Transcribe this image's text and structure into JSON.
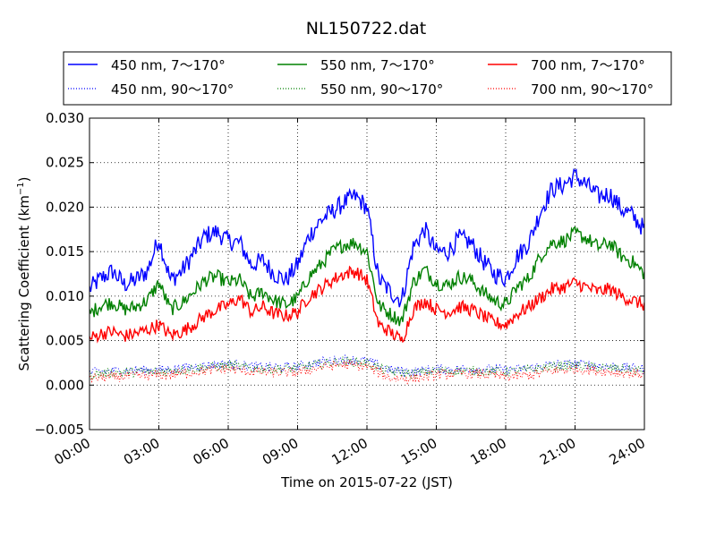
{
  "chart_data": {
    "type": "line",
    "title": "NL150722.dat",
    "xlabel": "Time on 2015-07-22 (JST)",
    "ylabel_main": "Scattering Coefficient (km",
    "ylabel_sup": "−1",
    "ylabel_close": ")",
    "xlim_hours": [
      0,
      24
    ],
    "ylim": [
      -0.005,
      0.03
    ],
    "x_ticks": [
      {
        "hour": 0,
        "label": "00:00"
      },
      {
        "hour": 3,
        "label": "03:00"
      },
      {
        "hour": 6,
        "label": "06:00"
      },
      {
        "hour": 9,
        "label": "09:00"
      },
      {
        "hour": 12,
        "label": "12:00"
      },
      {
        "hour": 15,
        "label": "15:00"
      },
      {
        "hour": 18,
        "label": "18:00"
      },
      {
        "hour": 21,
        "label": "21:00"
      },
      {
        "hour": 24,
        "label": "24:00"
      }
    ],
    "y_ticks": [
      {
        "value": -0.005,
        "label": "−0.005"
      },
      {
        "value": 0.0,
        "label": "0.000"
      },
      {
        "value": 0.005,
        "label": "0.005"
      },
      {
        "value": 0.01,
        "label": "0.010"
      },
      {
        "value": 0.015,
        "label": "0.015"
      },
      {
        "value": 0.02,
        "label": "0.020"
      },
      {
        "value": 0.025,
        "label": "0.025"
      },
      {
        "value": 0.03,
        "label": "0.030"
      }
    ],
    "grid": true,
    "legend_position": "top, above plot",
    "series": [
      {
        "name": "450 nm, 7～170°",
        "color": "#0000ff",
        "style": "solid",
        "x": [
          0,
          0.5,
          1,
          1.5,
          2,
          2.5,
          3,
          3.5,
          4,
          4.5,
          5,
          5.5,
          6,
          6.5,
          7,
          7.5,
          8,
          8.5,
          9,
          9.5,
          10,
          10.5,
          11,
          11.5,
          12,
          12.5,
          13,
          13.5,
          14,
          14.5,
          15,
          15.5,
          16,
          16.5,
          17,
          17.5,
          18,
          18.5,
          19,
          19.5,
          20,
          20.5,
          21,
          21.5,
          22,
          22.5,
          23,
          23.5,
          24
        ],
        "y": [
          0.0108,
          0.012,
          0.0128,
          0.0113,
          0.0118,
          0.0128,
          0.0165,
          0.0118,
          0.0128,
          0.0148,
          0.0168,
          0.0172,
          0.0162,
          0.016,
          0.0135,
          0.014,
          0.0125,
          0.0118,
          0.0135,
          0.0168,
          0.0185,
          0.0195,
          0.0205,
          0.0212,
          0.02,
          0.012,
          0.0105,
          0.0095,
          0.0155,
          0.0175,
          0.015,
          0.015,
          0.0165,
          0.016,
          0.014,
          0.0125,
          0.012,
          0.0145,
          0.016,
          0.0195,
          0.022,
          0.0225,
          0.0235,
          0.0225,
          0.0212,
          0.0215,
          0.0198,
          0.019,
          0.0175
        ]
      },
      {
        "name": "550 nm, 7～170°",
        "color": "#008000",
        "style": "solid",
        "x": [
          0,
          0.5,
          1,
          1.5,
          2,
          2.5,
          3,
          3.5,
          4,
          4.5,
          5,
          5.5,
          6,
          6.5,
          7,
          7.5,
          8,
          8.5,
          9,
          9.5,
          10,
          10.5,
          11,
          11.5,
          12,
          12.5,
          13,
          13.5,
          14,
          14.5,
          15,
          15.5,
          16,
          16.5,
          17,
          17.5,
          18,
          18.5,
          19,
          19.5,
          20,
          20.5,
          21,
          21.5,
          22,
          22.5,
          23,
          23.5,
          24
        ],
        "y": [
          0.008,
          0.009,
          0.0093,
          0.0085,
          0.0088,
          0.0095,
          0.0115,
          0.0085,
          0.0092,
          0.0105,
          0.0118,
          0.0122,
          0.0115,
          0.0118,
          0.0098,
          0.0105,
          0.0095,
          0.009,
          0.0098,
          0.0122,
          0.0135,
          0.015,
          0.0158,
          0.016,
          0.015,
          0.009,
          0.008,
          0.0072,
          0.0115,
          0.013,
          0.0115,
          0.0112,
          0.0122,
          0.0118,
          0.0105,
          0.0095,
          0.009,
          0.011,
          0.012,
          0.0145,
          0.016,
          0.0162,
          0.017,
          0.0165,
          0.0155,
          0.016,
          0.0145,
          0.0138,
          0.0125
        ]
      },
      {
        "name": "700 nm, 7～170°",
        "color": "#ff0000",
        "style": "solid",
        "x": [
          0,
          0.5,
          1,
          1.5,
          2,
          2.5,
          3,
          3.5,
          4,
          4.5,
          5,
          5.5,
          6,
          6.5,
          7,
          7.5,
          8,
          8.5,
          9,
          9.5,
          10,
          10.5,
          11,
          11.5,
          12,
          12.5,
          13,
          13.5,
          14,
          14.5,
          15,
          15.5,
          16,
          16.5,
          17,
          17.5,
          18,
          18.5,
          19,
          19.5,
          20,
          20.5,
          21,
          21.5,
          22,
          22.5,
          23,
          23.5,
          24
        ],
        "y": [
          0.0052,
          0.0058,
          0.006,
          0.0055,
          0.0058,
          0.0062,
          0.0068,
          0.0056,
          0.006,
          0.0068,
          0.0078,
          0.0085,
          0.009,
          0.0098,
          0.0082,
          0.0088,
          0.008,
          0.0078,
          0.0082,
          0.01,
          0.0108,
          0.0118,
          0.0125,
          0.0128,
          0.0118,
          0.0068,
          0.006,
          0.005,
          0.0085,
          0.0095,
          0.0085,
          0.0082,
          0.0088,
          0.0085,
          0.0078,
          0.007,
          0.0068,
          0.008,
          0.0088,
          0.0098,
          0.0108,
          0.011,
          0.0115,
          0.011,
          0.0105,
          0.0108,
          0.01,
          0.0095,
          0.009
        ]
      },
      {
        "name": "450 nm, 90～170°",
        "color": "#0000ff",
        "style": "dotted",
        "x": [
          0,
          1,
          2,
          3,
          4,
          5,
          6,
          7,
          8,
          9,
          10,
          11,
          12,
          13,
          14,
          15,
          16,
          17,
          18,
          19,
          20,
          21,
          22,
          23,
          24
        ],
        "y": [
          0.0014,
          0.0016,
          0.0017,
          0.0017,
          0.0019,
          0.0022,
          0.0024,
          0.0021,
          0.002,
          0.0021,
          0.0026,
          0.0029,
          0.0027,
          0.0017,
          0.0015,
          0.0018,
          0.0018,
          0.0018,
          0.0017,
          0.0019,
          0.0023,
          0.0024,
          0.0022,
          0.002,
          0.0018
        ]
      },
      {
        "name": "550 nm, 90～170°",
        "color": "#008000",
        "style": "dotted",
        "x": [
          0,
          1,
          2,
          3,
          4,
          5,
          6,
          7,
          8,
          9,
          10,
          11,
          12,
          13,
          14,
          15,
          16,
          17,
          18,
          19,
          20,
          21,
          22,
          23,
          24
        ],
        "y": [
          0.0012,
          0.0014,
          0.0015,
          0.0015,
          0.0017,
          0.002,
          0.0022,
          0.0019,
          0.0018,
          0.0019,
          0.0024,
          0.0027,
          0.0025,
          0.0015,
          0.0013,
          0.0016,
          0.0016,
          0.0016,
          0.0015,
          0.0017,
          0.0021,
          0.0022,
          0.002,
          0.0018,
          0.0016
        ]
      },
      {
        "name": "700 nm, 90～170°",
        "color": "#ff0000",
        "style": "dotted",
        "x": [
          0,
          1,
          2,
          3,
          4,
          5,
          6,
          7,
          8,
          9,
          10,
          11,
          12,
          13,
          14,
          15,
          16,
          17,
          18,
          19,
          20,
          21,
          22,
          23,
          24
        ],
        "y": [
          0.0008,
          0.0009,
          0.001,
          0.0011,
          0.0013,
          0.0016,
          0.0018,
          0.0015,
          0.0014,
          0.0014,
          0.002,
          0.0023,
          0.0021,
          0.0008,
          0.0007,
          0.0012,
          0.0013,
          0.0012,
          0.0009,
          0.0011,
          0.0016,
          0.0018,
          0.0016,
          0.0014,
          0.0012
        ]
      }
    ]
  }
}
